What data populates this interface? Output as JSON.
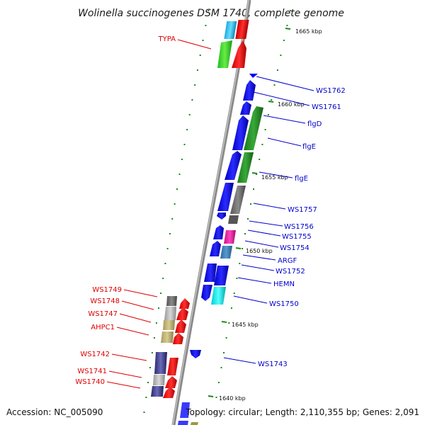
{
  "title": "Wolinella succinogenes DSM 1740, complete genome",
  "footer": {
    "accession": "Accession: NC_005090",
    "topology": "Topology: circular; Length: 2,110,355 bp; Genes: 2,091"
  },
  "scale_labels": [
    "1665 kbp",
    "1660 kbp",
    "1655 kbp",
    "1650 kbp",
    "1645 kbp",
    "1640 kbp"
  ],
  "gene_labels_right": [
    "WS1762",
    "WS1761",
    "flgD",
    "flgE",
    "flgE",
    "WS1757",
    "WS1756",
    "WS1755",
    "WS1754",
    "ARGF",
    "WS1752",
    "HEMN",
    "WS1750",
    "WS1743"
  ],
  "gene_labels_left": [
    "TYPA",
    "WS1749",
    "WS1748",
    "WS1747",
    "AHPC1",
    "WS1742",
    "WS1741",
    "WS1740"
  ],
  "colors": {
    "label_right": "#0000cc",
    "label_left": "#dd0000",
    "backbone": "#8a8a8a",
    "tick": "#1a8a1a"
  }
}
